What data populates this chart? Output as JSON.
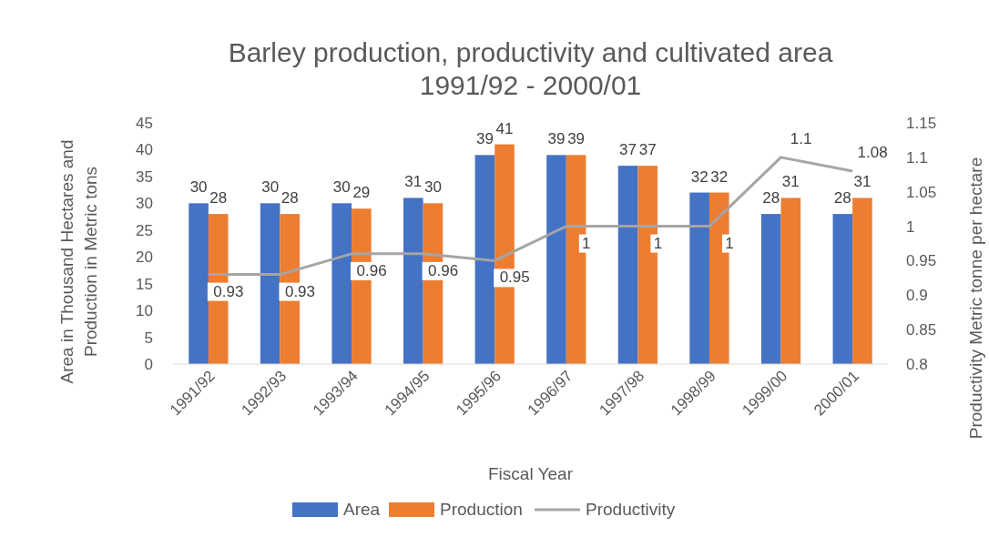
{
  "chart_data": {
    "type": "bar",
    "title": "Barley production, productivity and cultivated area\n1991/92 - 2000/01",
    "xlabel": "Fiscal Year",
    "ylabel": "Area in Thousand Hectares and\nProduction in Metric tons",
    "y2label": "Productivity Metric tonne per hectare",
    "categories": [
      "1991/92",
      "1992/93",
      "1993/94",
      "1994/95",
      "1995/96",
      "1996/97",
      "1997/98",
      "1998/99",
      "1999/00",
      "2000/01"
    ],
    "series": [
      {
        "name": "Area",
        "color": "#4472c4",
        "values": [
          30,
          30,
          30,
          31,
          39,
          39,
          37,
          32,
          28,
          28
        ]
      },
      {
        "name": "Production",
        "color": "#ed7d31",
        "values": [
          28,
          28,
          29,
          30,
          41,
          39,
          37,
          32,
          31,
          31
        ]
      },
      {
        "name": "Productivity",
        "type": "line",
        "axis": "y2",
        "color": "#a5a5a5",
        "values": [
          0.93,
          0.93,
          0.96,
          0.96,
          0.95,
          1,
          1,
          1,
          1.1,
          1.08
        ]
      }
    ],
    "ylim": [
      0,
      45
    ],
    "yticks": [
      0,
      5,
      10,
      15,
      20,
      25,
      30,
      35,
      40,
      45
    ],
    "y2lim": [
      0.8,
      1.15
    ],
    "y2ticks": [
      0.8,
      0.85,
      0.9,
      0.95,
      1,
      1.05,
      1.1,
      1.15
    ],
    "data_labels": true,
    "legend": "bottom",
    "marker": "none",
    "line_style": "solid"
  }
}
